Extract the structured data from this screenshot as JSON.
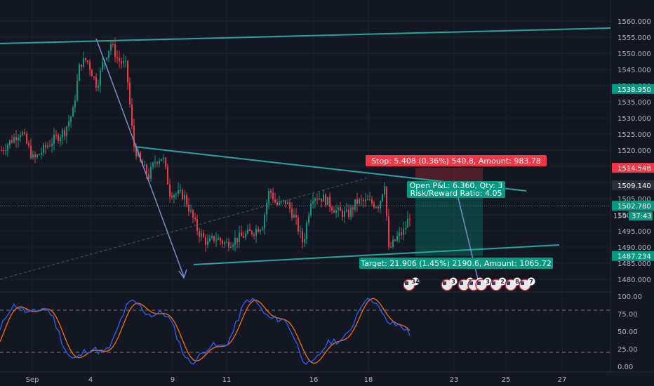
{
  "chart_data": {
    "type": "candlestick",
    "symbol_hint": "",
    "price_axis": {
      "ticks": [
        "1560.000",
        "1555.000",
        "1550.000",
        "1545.000",
        "1540.000",
        "1535.000",
        "1530.000",
        "1525.000",
        "1520.000",
        "1515.000",
        "1510.000",
        "1505.000",
        "1500.000",
        "1495.000",
        "1490.000",
        "1485.000",
        "1480.000"
      ],
      "ylim": [
        1478,
        1565
      ]
    },
    "time_axis": {
      "ticks": [
        "Sep",
        "4",
        "9",
        "11",
        "16",
        "18",
        "23",
        "25",
        "27"
      ]
    },
    "price_tags": [
      {
        "name": "resistance-tag",
        "value": 1538.95,
        "label": "1538.950",
        "color": "#089981"
      },
      {
        "name": "stop-tag",
        "value": 1514.548,
        "label": "1514.548",
        "color": "#f23645"
      },
      {
        "name": "entry-tag",
        "value": 1509.14,
        "label": "1509.140",
        "color": "#2a2e39"
      },
      {
        "name": "current-price-tag",
        "value": 1502.78,
        "label": "1502.780",
        "color": "#089981"
      },
      {
        "name": "target-tag",
        "value": 1487.234,
        "label": "1487.234",
        "color": "#089981"
      }
    ],
    "countdown": "37:43",
    "partial_tick_label": "150",
    "position": {
      "stop_text": "Stop: 5.408 (0.36%) 540.8, Amount: 983.78",
      "target_text": "Target: 21.906 (1.45%) 2190.6, Amount: 1065.72",
      "open_pnl_text": "Open P&L: 6.360, Qty: 3",
      "risk_reward_text": "Risk/Reward Ratio: 4.05",
      "entry": 1509.14,
      "stop": 1514.548,
      "target": 1487.234
    },
    "events": [
      {
        "label": "34",
        "x": 583
      },
      {
        "label": "3",
        "x": 637
      },
      {
        "label": "3",
        "x": 661
      },
      {
        "label": "3",
        "x": 675
      },
      {
        "label": "3",
        "x": 686
      },
      {
        "label": "2",
        "x": 707
      },
      {
        "label": "8",
        "x": 728
      },
      {
        "label": "7",
        "x": 748
      }
    ],
    "oscillator": {
      "ticks": [
        "100.00",
        "75.00",
        "50.00",
        "25.00",
        "0.00"
      ],
      "ylim": [
        0,
        100
      ],
      "upper_band": 80,
      "lower_band": 20,
      "k_color": "#2962ff",
      "d_color": "#ff6d00"
    },
    "colors": {
      "up": "#089981",
      "down": "#f23645",
      "channel": "#26a69a",
      "arrow": "#7b8ec8"
    }
  }
}
